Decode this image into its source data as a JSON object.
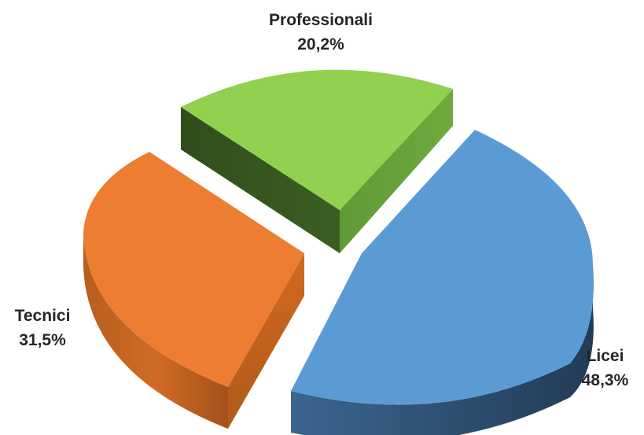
{
  "chart_data": {
    "type": "pie",
    "style": "3d-exploded",
    "title": "",
    "slices": [
      {
        "name": "Licei",
        "value": 48.3,
        "label": "48,3%",
        "color": "#5b9bd5",
        "side_color": "#2e4f6e"
      },
      {
        "name": "Tecnici",
        "value": 31.5,
        "label": "31,5%",
        "color": "#ed7d31",
        "side_color": "#a8531a"
      },
      {
        "name": "Professionali",
        "value": 20.2,
        "label": "20,2%",
        "color": "#92d050",
        "side_color": "#3a5a22"
      }
    ],
    "legend": "none"
  }
}
